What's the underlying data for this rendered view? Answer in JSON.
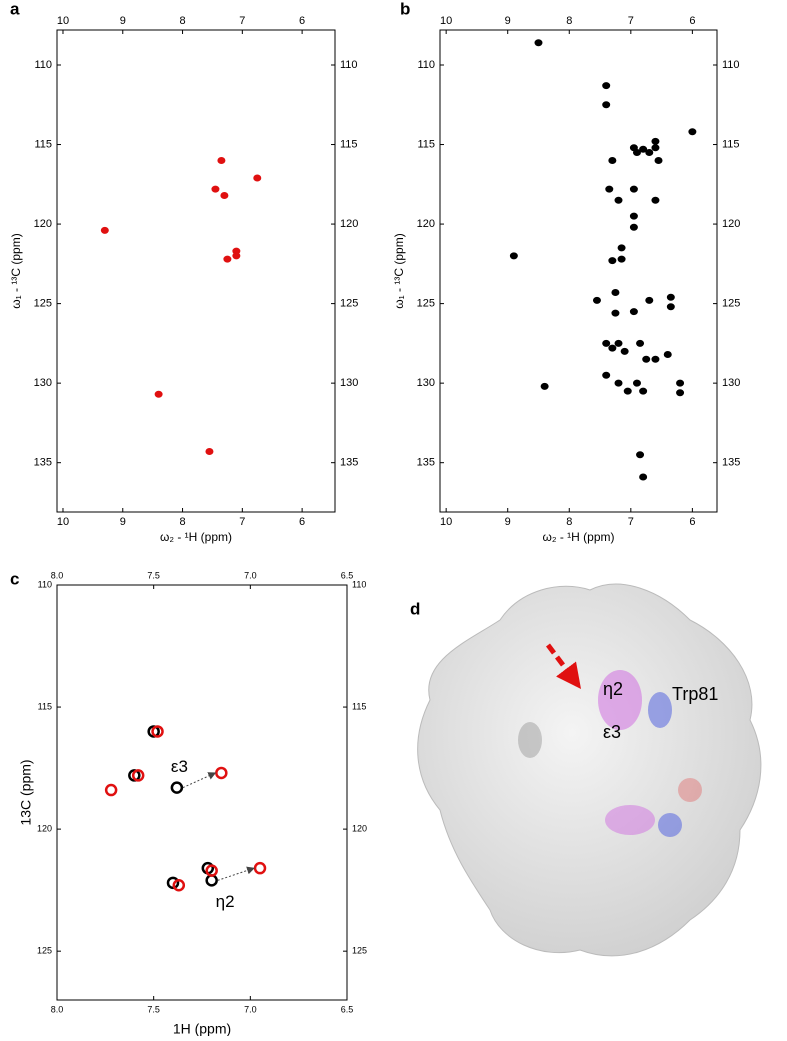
{
  "chart_data": [
    {
      "type": "scatter",
      "panel": "a",
      "xlabel": "ω₂ - ¹H  (ppm)",
      "ylabel": "ω₁ - ¹³C (ppm)",
      "xlim": [
        10.1,
        5.45
      ],
      "ylim": [
        107.8,
        138.1
      ],
      "xticks": [
        10,
        9,
        8,
        7,
        6
      ],
      "yticks": [
        110,
        115,
        120,
        125,
        130,
        135
      ],
      "series": [
        {
          "color": "#e01010",
          "x": [
            7.35,
            7.45,
            7.3,
            7.1,
            7.25,
            7.1,
            6.75,
            9.3,
            8.4,
            7.55
          ],
          "values": [
            116,
            117.8,
            118.2,
            121.7,
            122.2,
            122,
            117.1,
            120.4,
            130.7,
            134.3
          ]
        }
      ]
    },
    {
      "type": "scatter",
      "panel": "b",
      "xlabel": "ω₂ - ¹H  (ppm)",
      "ylabel": "ω₁ - ¹³C (ppm)",
      "xlim": [
        10.1,
        5.6
      ],
      "ylim": [
        107.8,
        138.1
      ],
      "xticks": [
        10,
        9,
        8,
        7,
        6
      ],
      "yticks": [
        110,
        115,
        120,
        125,
        130,
        135
      ],
      "series": [
        {
          "color": "#000000",
          "x": [
            7.4,
            7.4,
            7.3,
            7.35,
            7.2,
            6.95,
            6.9,
            6.8,
            6.7,
            6.6,
            6.55,
            6.6,
            6.0,
            6.95,
            6.95,
            6.95,
            6.6,
            7.15,
            7.15,
            7.3,
            7.55,
            7.25,
            7.25,
            6.95,
            6.7,
            6.35,
            6.35,
            7.4,
            7.3,
            7.2,
            7.1,
            6.85,
            6.75,
            6.6,
            6.4,
            7.4,
            7.2,
            7.05,
            6.9,
            6.8,
            6.2,
            6.2,
            6.85,
            6.8,
            8.9,
            8.5,
            8.4
          ],
          "values": [
            111.3,
            112.5,
            116,
            117.8,
            118.5,
            115.2,
            115.5,
            115.3,
            115.5,
            115.2,
            116,
            114.8,
            114.2,
            117.8,
            119.5,
            120.2,
            118.5,
            121.5,
            122.2,
            122.3,
            124.8,
            124.3,
            125.6,
            125.5,
            124.8,
            124.6,
            125.2,
            127.5,
            127.8,
            127.5,
            128,
            127.5,
            128.5,
            128.5,
            128.2,
            129.5,
            130,
            130.5,
            130,
            130.5,
            130,
            130.6,
            134.5,
            135.9,
            122,
            108.6,
            130.2
          ]
        }
      ]
    },
    {
      "type": "scatter",
      "panel": "c",
      "xlabel": "1H (ppm)",
      "ylabel": "13C (ppm)",
      "xlim": [
        8.0,
        6.5
      ],
      "ylim": [
        110,
        127
      ],
      "xticks": [
        {
          "value": 8,
          "label": "8.0"
        },
        {
          "value": 7.5,
          "label": "7.5"
        },
        {
          "value": 7,
          "label": "7.0"
        },
        {
          "value": 6.5,
          "label": "6.5"
        }
      ],
      "yticks": [
        110,
        115,
        120,
        125
      ],
      "annotations": [
        "ε3",
        "η2"
      ],
      "series": [
        {
          "color": "#000000",
          "x": [
            7.5,
            7.6,
            7.38,
            7.4,
            7.22,
            7.2
          ],
          "values": [
            116,
            117.8,
            118.3,
            122.2,
            121.6,
            122.1
          ]
        },
        {
          "color": "#e01010",
          "x": [
            7.48,
            7.58,
            7.15,
            7.37,
            7.2,
            6.95,
            7.72
          ],
          "values": [
            116,
            117.8,
            117.7,
            122.3,
            121.7,
            121.6,
            118.4
          ]
        }
      ]
    }
  ],
  "panel_d": {
    "panel": "d",
    "labels": [
      "η2",
      "Trp81",
      "ε3"
    ]
  }
}
